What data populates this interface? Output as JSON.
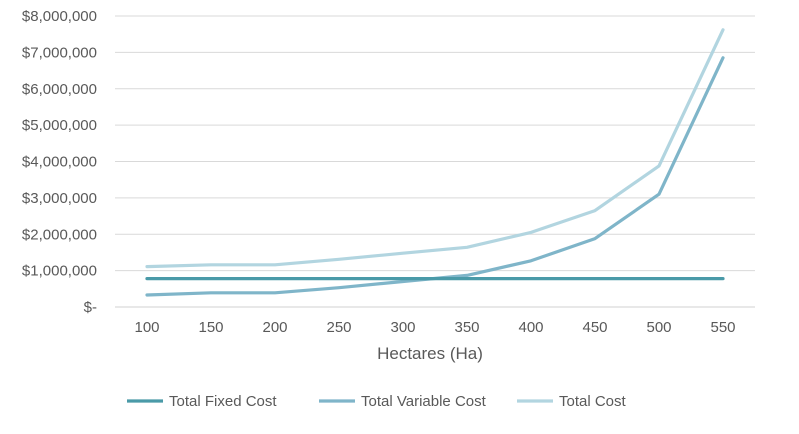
{
  "chart_data": {
    "type": "line",
    "title": "",
    "xlabel": "Hectares (Ha)",
    "ylabel": "",
    "x": [
      100,
      150,
      200,
      250,
      300,
      350,
      400,
      450,
      500,
      550
    ],
    "ylim": [
      0,
      8000000
    ],
    "y_ticks": [
      {
        "value": 0,
        "label": "$-"
      },
      {
        "value": 1000000,
        "label": "$1,000,000"
      },
      {
        "value": 2000000,
        "label": "$2,000,000"
      },
      {
        "value": 3000000,
        "label": "$3,000,000"
      },
      {
        "value": 4000000,
        "label": "$4,000,000"
      },
      {
        "value": 5000000,
        "label": "$5,000,000"
      },
      {
        "value": 6000000,
        "label": "$6,000,000"
      },
      {
        "value": 7000000,
        "label": "$7,000,000"
      },
      {
        "value": 8000000,
        "label": "$8,000,000"
      }
    ],
    "grid": true,
    "legend_position": "bottom",
    "series": [
      {
        "name": "Total Fixed Cost",
        "color": "#4a9aa8",
        "values": [
          780000,
          780000,
          780000,
          780000,
          780000,
          780000,
          780000,
          780000,
          780000,
          780000
        ]
      },
      {
        "name": "Total Variable Cost",
        "color": "#7fb5c9",
        "values": [
          330000,
          390000,
          390000,
          530000,
          700000,
          870000,
          1270000,
          1880000,
          3100000,
          6850000
        ]
      },
      {
        "name": "Total Cost",
        "color": "#b2d5e0",
        "values": [
          1110000,
          1160000,
          1160000,
          1310000,
          1480000,
          1640000,
          2050000,
          2650000,
          3880000,
          7620000
        ]
      }
    ]
  }
}
